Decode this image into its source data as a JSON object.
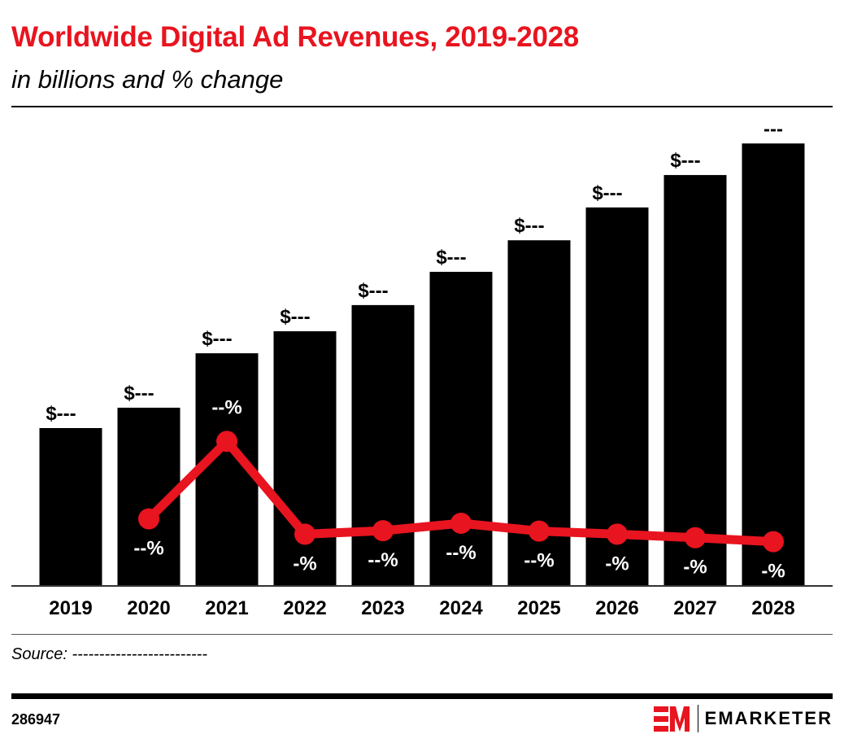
{
  "title": "Worldwide Digital Ad Revenues, 2019-2028",
  "subtitle": "in billions and % change",
  "source": "Source: -------------------------",
  "chart_id": "286947",
  "brand": "EMARKETER",
  "colors": {
    "bar": "#000000",
    "line": "#e8141f",
    "title": "#e8141f"
  },
  "chart_data": {
    "type": "bar+line",
    "categories": [
      "2019",
      "2020",
      "2021",
      "2022",
      "2023",
      "2024",
      "2025",
      "2026",
      "2027",
      "2028"
    ],
    "series": [
      {
        "type": "bar",
        "values": [
          380,
          429,
          560,
          613,
          676,
          756,
          832,
          911,
          989,
          1065
        ],
        "labels": [
          "$---",
          "$---",
          "$---",
          "$---",
          "$---",
          "$---",
          "$---",
          "$---",
          "$---",
          "---"
        ]
      },
      {
        "type": "line",
        "values": [
          null,
          12.9,
          30.6,
          9.4,
          10.2,
          11.9,
          10.1,
          9.4,
          8.6,
          7.7
        ],
        "labels": [
          "",
          "--%",
          "--%",
          "-%",
          "--%",
          "--%",
          "--%",
          "-%",
          "-%",
          "-%"
        ]
      }
    ],
    "grid": false,
    "legend": "none"
  }
}
